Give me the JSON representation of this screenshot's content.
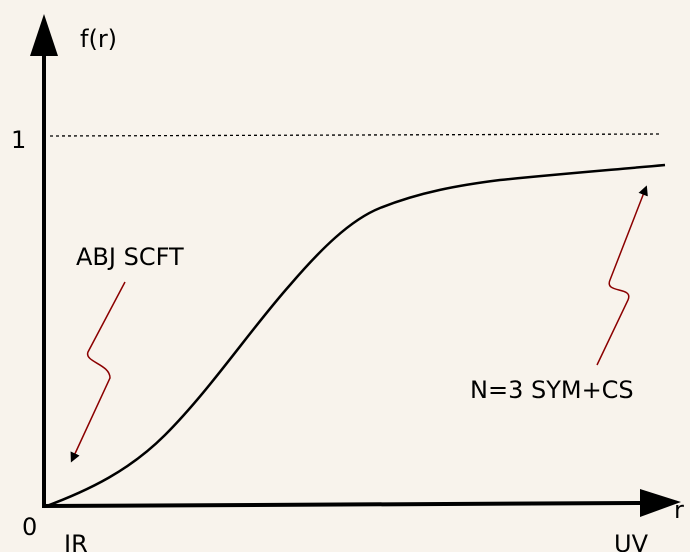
{
  "labels": {
    "y_axis": "f(r)",
    "one": "1",
    "zero": "0",
    "x_axis": "r",
    "ir": "IR",
    "uv": "UV",
    "abj": "ABJ SCFT",
    "n3": "N=3 SYM+CS"
  }
}
